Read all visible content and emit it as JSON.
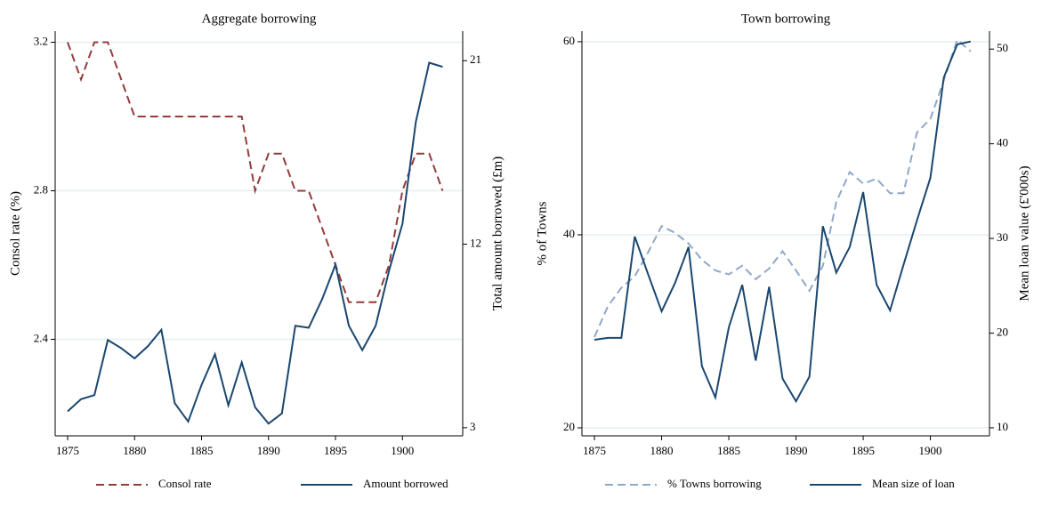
{
  "chart_data": [
    {
      "type": "line",
      "title": "Aggregate borrowing",
      "x": [
        1875,
        1876,
        1877,
        1878,
        1879,
        1880,
        1881,
        1882,
        1883,
        1884,
        1885,
        1886,
        1887,
        1888,
        1889,
        1890,
        1891,
        1892,
        1893,
        1894,
        1895,
        1896,
        1897,
        1898,
        1899,
        1900,
        1901,
        1902,
        1903
      ],
      "xlim": [
        1874.07,
        1904.5
      ],
      "xticks": [
        1875,
        1880,
        1885,
        1890,
        1895,
        1900
      ],
      "ylim": [
        2.14,
        3.23
      ],
      "yticks": [
        2.4,
        2.8,
        3.2
      ],
      "y2lim": [
        2.6,
        22.45
      ],
      "y2ticks": [
        3,
        12,
        21
      ],
      "ylabel": "Consol rate (%)",
      "y2label": "Total amount borrowed (£m)",
      "grid": true,
      "series": [
        {
          "name": "Consol rate",
          "color": "#943b3b",
          "linestyle": "dashed",
          "values": [
            3.2,
            3.1,
            3.2,
            3.2,
            3.1,
            3.0,
            3.0,
            3.0,
            3.0,
            3.0,
            3.0,
            3.0,
            3.0,
            3.0,
            2.8,
            2.9,
            2.9,
            2.8,
            2.8,
            2.7,
            2.6,
            2.5,
            2.5,
            2.5,
            2.6,
            2.8,
            2.9,
            2.9,
            2.8
          ]
        },
        {
          "name": "Amount borrowed",
          "color": "#1a476f",
          "linestyle": "solid",
          "axis": "y2",
          "values": [
            3.8,
            4.4,
            4.6,
            7.3,
            6.9,
            6.4,
            7.0,
            7.8,
            4.2,
            3.3,
            5.1,
            6.6,
            4.1,
            6.2,
            4.0,
            3.2,
            3.7,
            8.0,
            7.9,
            9.3,
            11.0,
            8.0,
            6.8,
            8.0,
            10.7,
            13.0,
            18.0,
            20.9,
            20.7
          ]
        }
      ]
    },
    {
      "type": "line",
      "title": "Town borrowing",
      "x": [
        1875,
        1876,
        1877,
        1878,
        1879,
        1880,
        1881,
        1882,
        1883,
        1884,
        1885,
        1886,
        1887,
        1888,
        1889,
        1890,
        1891,
        1892,
        1893,
        1894,
        1895,
        1896,
        1897,
        1898,
        1899,
        1900,
        1901,
        1902,
        1903
      ],
      "xlim": [
        1874.07,
        1904.4
      ],
      "xticks": [
        1875,
        1880,
        1885,
        1890,
        1895,
        1900
      ],
      "ylim": [
        19.17,
        61.1
      ],
      "yticks": [
        20,
        40,
        60
      ],
      "y2lim": [
        9.15,
        51.9
      ],
      "y2ticks": [
        10,
        20,
        30,
        40,
        50
      ],
      "ylabel": "% of Towns",
      "y2label": "Mean loan value (£'000s)",
      "grid": true,
      "series": [
        {
          "name": "% Towns borrowing",
          "color": "#90a8c8",
          "linestyle": "dashed",
          "values": [
            29.4,
            32.6,
            34.5,
            35.7,
            38.2,
            40.9,
            40.2,
            39.1,
            37.4,
            36.3,
            35.9,
            36.8,
            35.4,
            36.5,
            38.3,
            36.3,
            34.2,
            36.8,
            43.4,
            46.5,
            45.3,
            45.8,
            44.3,
            44.3,
            50.6,
            52.0,
            56.0,
            60.2,
            59.0
          ]
        },
        {
          "name": "Mean size of loan",
          "color": "#1a476f",
          "linestyle": "solid",
          "axis": "y2",
          "values": [
            19.3,
            19.5,
            19.5,
            30.2,
            26.2,
            22.3,
            25.3,
            29.1,
            16.5,
            13.2,
            20.6,
            25.1,
            17.1,
            24.9,
            15.2,
            12.8,
            15.4,
            31.3,
            26.4,
            29.1,
            34.9,
            25.1,
            22.4,
            27.2,
            31.9,
            36.4,
            47.0,
            50.5,
            50.8
          ]
        }
      ]
    }
  ]
}
